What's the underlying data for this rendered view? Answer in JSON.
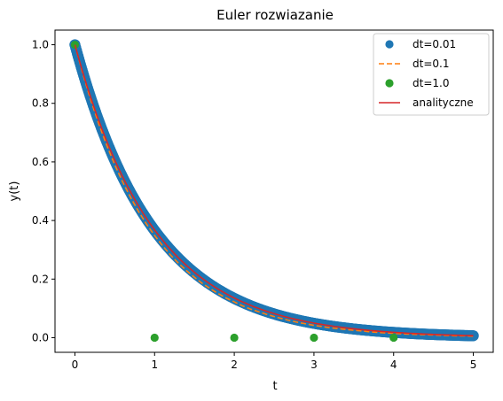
{
  "chart_data": {
    "type": "line",
    "title": "Euler rozwiazanie",
    "xlabel": "t",
    "ylabel": "y(t)",
    "xlim": [
      -0.25,
      5.25
    ],
    "ylim": [
      -0.05,
      1.05
    ],
    "x_ticks": [
      0,
      1,
      2,
      3,
      4,
      5
    ],
    "x_tick_labels": [
      "0",
      "1",
      "2",
      "3",
      "4",
      "5"
    ],
    "y_ticks": [
      0.0,
      0.2,
      0.4,
      0.6,
      0.8,
      1.0
    ],
    "y_tick_labels": [
      "0.0",
      "0.2",
      "0.4",
      "0.6",
      "0.8",
      "1.0"
    ],
    "grid": false,
    "legend_position": "top-right",
    "series": [
      {
        "name": "dt=0.01",
        "style": "scatter",
        "color": "#1f77b4",
        "equation": "y = 0.99^(t/0.01)",
        "x_start": 0,
        "x_end": 5,
        "step": 0.01
      },
      {
        "name": "dt=0.1",
        "style": "dashed-line",
        "color": "#ff7f0e",
        "x": [
          0,
          0.1,
          0.2,
          0.3,
          0.4,
          0.5,
          0.6,
          0.7,
          0.8,
          0.9,
          1.0,
          1.1,
          1.2,
          1.3,
          1.4,
          1.5,
          1.6,
          1.7,
          1.8,
          1.9,
          2.0,
          2.1,
          2.2,
          2.3,
          2.4,
          2.5,
          2.6,
          2.7,
          2.8,
          2.9,
          3.0,
          3.1,
          3.2,
          3.3,
          3.4,
          3.5,
          3.6,
          3.7,
          3.8,
          3.9,
          4.0,
          4.1,
          4.2,
          4.3,
          4.4,
          4.5,
          4.6,
          4.7,
          4.8,
          4.9,
          5.0
        ],
        "y": [
          1.0,
          0.9,
          0.81,
          0.729,
          0.656,
          0.59,
          0.531,
          0.478,
          0.43,
          0.387,
          0.349,
          0.314,
          0.282,
          0.254,
          0.229,
          0.206,
          0.185,
          0.167,
          0.15,
          0.135,
          0.122,
          0.109,
          0.098,
          0.089,
          0.08,
          0.072,
          0.065,
          0.058,
          0.052,
          0.047,
          0.042,
          0.038,
          0.034,
          0.031,
          0.028,
          0.025,
          0.023,
          0.02,
          0.018,
          0.016,
          0.015,
          0.013,
          0.012,
          0.011,
          0.01,
          0.009,
          0.008,
          0.007,
          0.006,
          0.006,
          0.005
        ]
      },
      {
        "name": "dt=1.0",
        "style": "scatter",
        "color": "#2ca02c",
        "x": [
          0,
          1,
          2,
          3,
          4
        ],
        "y": [
          1.0,
          0.0,
          0.0,
          0.0,
          0.0
        ]
      },
      {
        "name": "analityczne",
        "style": "solid-line",
        "color": "#d62728",
        "equation": "y = exp(-t)",
        "x_start": 0,
        "x_end": 5,
        "step": 0.05
      }
    ]
  }
}
